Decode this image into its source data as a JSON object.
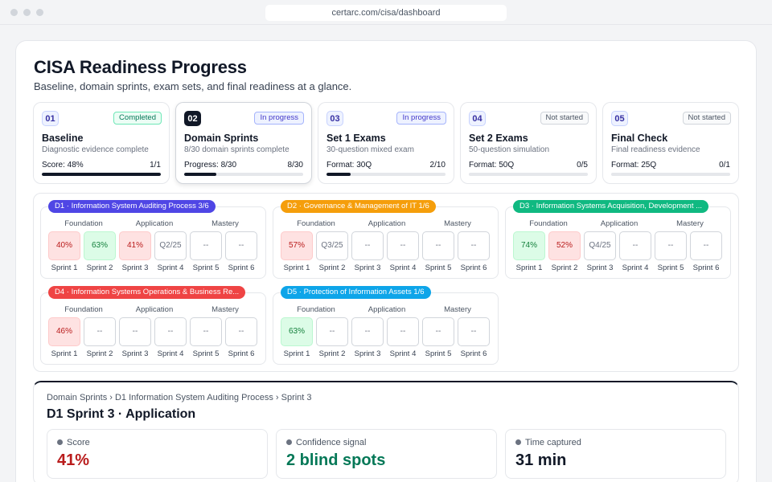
{
  "browser": {
    "url": "certarc.com/cisa/dashboard"
  },
  "page": {
    "title": "CISA Readiness Progress",
    "subtitle": "Baseline, domain sprints, exam sets, and final readiness at a glance."
  },
  "stages": [
    {
      "num": "01",
      "status": "Completed",
      "title": "Baseline",
      "desc": "Diagnostic evidence complete",
      "metric": "Score: 48%",
      "count": "1/1",
      "progress": 1.0
    },
    {
      "num": "02",
      "status": "In progress",
      "title": "Domain Sprints",
      "desc": "8/30 domain sprints complete",
      "metric": "Progress: 8/30",
      "count": "8/30",
      "progress": 0.267
    },
    {
      "num": "03",
      "status": "In progress",
      "title": "Set 1 Exams",
      "desc": "30-question mixed exam",
      "metric": "Format: 30Q",
      "count": "2/10",
      "progress": 0.2
    },
    {
      "num": "04",
      "status": "Not started",
      "title": "Set 2 Exams",
      "desc": "50-question simulation",
      "metric": "Format: 50Q",
      "count": "0/5",
      "progress": 0
    },
    {
      "num": "05",
      "status": "Not started",
      "title": "Final Check",
      "desc": "Final readiness evidence",
      "metric": "Format: 25Q",
      "count": "0/1",
      "progress": 0
    }
  ],
  "phases": [
    "Foundation",
    "Application",
    "Mastery"
  ],
  "sprint_labels": [
    "Sprint 1",
    "Sprint 2",
    "Sprint 3",
    "Sprint 4",
    "Sprint 5",
    "Sprint 6"
  ],
  "domains": [
    {
      "tag": "D1 · Information System Auditing Process  3/6",
      "color": "#4f46e5",
      "cells": [
        {
          "v": "40%",
          "s": "red"
        },
        {
          "v": "63%",
          "s": "green"
        },
        {
          "v": "41%",
          "s": "red"
        },
        {
          "v": "Q2/25",
          "s": "plain"
        },
        {
          "v": "--",
          "s": "plain"
        },
        {
          "v": "--",
          "s": "plain"
        }
      ]
    },
    {
      "tag": "D2 · Governance & Management of IT  1/6",
      "color": "#f59e0b",
      "cells": [
        {
          "v": "57%",
          "s": "red"
        },
        {
          "v": "Q3/25",
          "s": "plain"
        },
        {
          "v": "--",
          "s": "plain"
        },
        {
          "v": "--",
          "s": "plain"
        },
        {
          "v": "--",
          "s": "plain"
        },
        {
          "v": "--",
          "s": "plain"
        }
      ]
    },
    {
      "tag": "D3 · Information Systems Acquisition, Development ...",
      "color": "#10b981",
      "cells": [
        {
          "v": "74%",
          "s": "green"
        },
        {
          "v": "52%",
          "s": "red"
        },
        {
          "v": "Q4/25",
          "s": "plain"
        },
        {
          "v": "--",
          "s": "plain"
        },
        {
          "v": "--",
          "s": "plain"
        },
        {
          "v": "--",
          "s": "plain"
        }
      ]
    },
    {
      "tag": "D4 · Information Systems Operations & Business Re...",
      "color": "#ef4444",
      "cells": [
        {
          "v": "46%",
          "s": "red"
        },
        {
          "v": "--",
          "s": "plain"
        },
        {
          "v": "--",
          "s": "plain"
        },
        {
          "v": "--",
          "s": "plain"
        },
        {
          "v": "--",
          "s": "plain"
        },
        {
          "v": "--",
          "s": "plain"
        }
      ]
    },
    {
      "tag": "D5 · Protection of Information Assets  1/6",
      "color": "#0ea5e9",
      "cells": [
        {
          "v": "63%",
          "s": "green"
        },
        {
          "v": "--",
          "s": "plain"
        },
        {
          "v": "--",
          "s": "plain"
        },
        {
          "v": "--",
          "s": "plain"
        },
        {
          "v": "--",
          "s": "plain"
        },
        {
          "v": "--",
          "s": "plain"
        }
      ]
    }
  ],
  "detail": {
    "breadcrumb": "Domain Sprints › D1 Information System Auditing Process › Sprint 3",
    "title": "D1 Sprint 3 · Application",
    "metrics": [
      {
        "label": "Score",
        "value": "41%",
        "color": "#b91c1c"
      },
      {
        "label": "Confidence signal",
        "value": "2 blind spots",
        "color": "#047857"
      },
      {
        "label": "Time captured",
        "value": "31 min",
        "color": "#111827"
      }
    ]
  }
}
